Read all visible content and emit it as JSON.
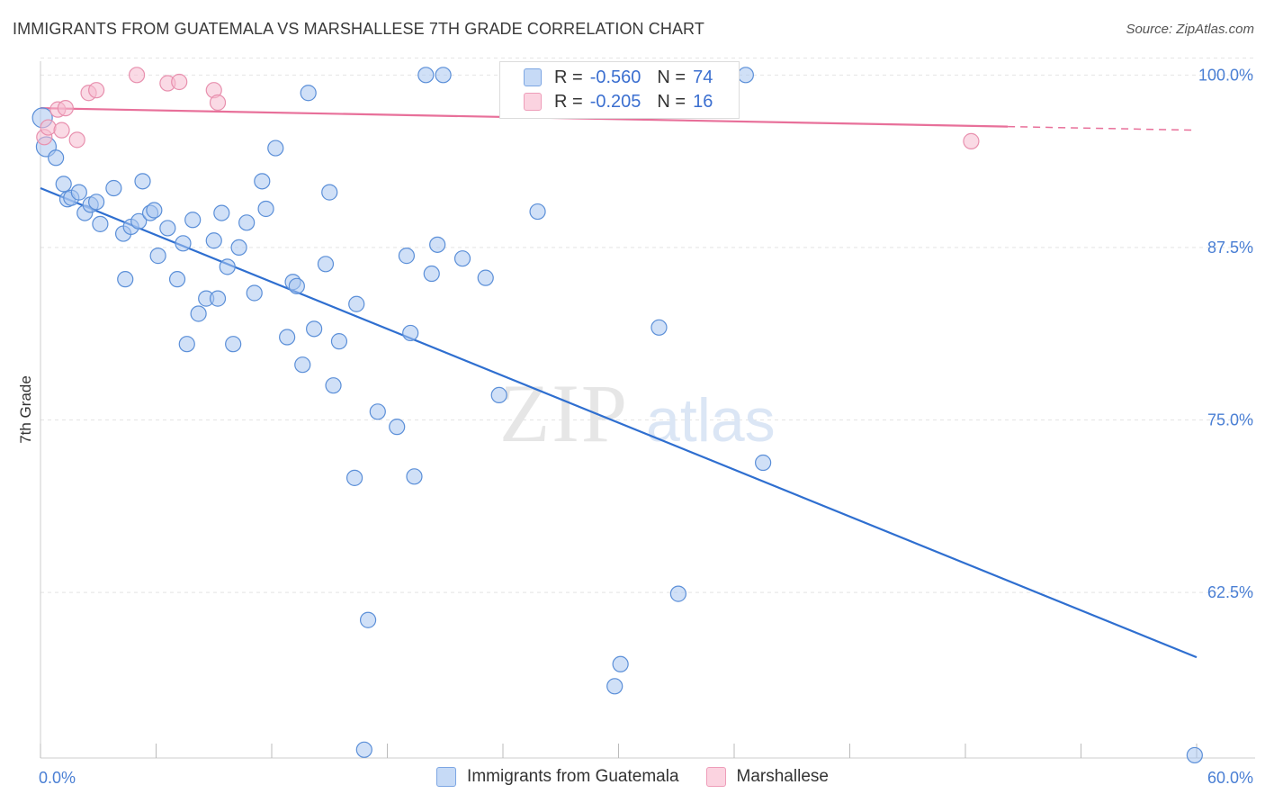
{
  "title": "IMMIGRANTS FROM GUATEMALA VS MARSHALLESE 7TH GRADE CORRELATION CHART",
  "source": "Source: ZipAtlas.com",
  "watermark": {
    "zip": "ZIP",
    "atlas": "atlas"
  },
  "legend_top": [
    {
      "r_label": "R =",
      "r_value": "-0.560",
      "n_label": "N =",
      "n_value": "74",
      "color": "#a9c6f0"
    },
    {
      "r_label": "R =",
      "r_value": "-0.205",
      "n_label": "N =",
      "n_value": "16",
      "color": "#f6bcd0"
    }
  ],
  "legend_bottom": [
    {
      "label": "Immigrants from Guatemala",
      "color": "#a9c6f0"
    },
    {
      "label": "Marshallese",
      "color": "#f6bcd0"
    }
  ],
  "chart_data": {
    "type": "scatter",
    "ylabel": "7th Grade",
    "xlim": [
      0,
      60
    ],
    "ylim": [
      50.5,
      101
    ],
    "x_tick_labels": [
      "0.0%",
      "60.0%"
    ],
    "y_ticks": [
      62.5,
      75.0,
      87.5,
      100.0
    ],
    "y_tick_labels": [
      "62.5%",
      "75.0%",
      "87.5%",
      "100.0%"
    ],
    "grid": true,
    "series": [
      {
        "name": "Immigrants from Guatemala",
        "color": "#a9c6f0",
        "stroke": "#5b8fd8",
        "trend_color": "#2f6fd0",
        "trend": {
          "x0": 0,
          "y0": 91.8,
          "x1": 60,
          "y1": 57.8,
          "dash_from": null
        },
        "points": [
          [
            0.1,
            96.9
          ],
          [
            0.3,
            94.8
          ],
          [
            0.8,
            94.0
          ],
          [
            1.2,
            92.1
          ],
          [
            1.4,
            91.0
          ],
          [
            1.6,
            91.1
          ],
          [
            2.0,
            91.5
          ],
          [
            2.3,
            90.0
          ],
          [
            2.6,
            90.6
          ],
          [
            2.9,
            90.8
          ],
          [
            3.1,
            89.2
          ],
          [
            3.8,
            91.8
          ],
          [
            4.3,
            88.5
          ],
          [
            4.4,
            85.2
          ],
          [
            4.7,
            89.0
          ],
          [
            5.1,
            89.4
          ],
          [
            5.3,
            92.3
          ],
          [
            5.7,
            90.0
          ],
          [
            5.9,
            90.2
          ],
          [
            6.1,
            86.9
          ],
          [
            6.6,
            88.9
          ],
          [
            7.1,
            85.2
          ],
          [
            7.4,
            87.8
          ],
          [
            7.6,
            80.5
          ],
          [
            7.9,
            89.5
          ],
          [
            8.2,
            82.7
          ],
          [
            8.6,
            83.8
          ],
          [
            9.0,
            88.0
          ],
          [
            9.2,
            83.8
          ],
          [
            9.4,
            90.0
          ],
          [
            9.7,
            86.1
          ],
          [
            10.0,
            80.5
          ],
          [
            10.3,
            87.5
          ],
          [
            10.7,
            89.3
          ],
          [
            11.1,
            84.2
          ],
          [
            11.5,
            92.3
          ],
          [
            11.7,
            90.3
          ],
          [
            12.2,
            94.7
          ],
          [
            12.8,
            81.0
          ],
          [
            13.1,
            85.0
          ],
          [
            13.3,
            84.7
          ],
          [
            13.6,
            79.0
          ],
          [
            13.9,
            98.7
          ],
          [
            14.2,
            81.6
          ],
          [
            14.8,
            86.3
          ],
          [
            15.0,
            91.5
          ],
          [
            15.2,
            77.5
          ],
          [
            15.5,
            80.7
          ],
          [
            16.3,
            70.8
          ],
          [
            16.4,
            83.4
          ],
          [
            16.8,
            51.1
          ],
          [
            17.0,
            60.5
          ],
          [
            17.5,
            75.6
          ],
          [
            18.5,
            74.5
          ],
          [
            19.0,
            86.9
          ],
          [
            19.2,
            81.3
          ],
          [
            19.4,
            70.9
          ],
          [
            20.0,
            100.0
          ],
          [
            20.3,
            85.6
          ],
          [
            20.6,
            87.7
          ],
          [
            20.9,
            100.0
          ],
          [
            21.9,
            86.7
          ],
          [
            23.1,
            85.3
          ],
          [
            23.8,
            76.8
          ],
          [
            25.8,
            90.1
          ],
          [
            29.8,
            55.7
          ],
          [
            30.1,
            57.3
          ],
          [
            32.1,
            81.7
          ],
          [
            33.1,
            62.4
          ],
          [
            36.6,
            100.0
          ],
          [
            37.5,
            71.9
          ],
          [
            59.9,
            50.7
          ]
        ]
      },
      {
        "name": "Marshallese",
        "color": "#f6bcd0",
        "stroke": "#e890ae",
        "trend_color": "#e8709a",
        "trend": {
          "x0": 0,
          "y0": 97.6,
          "x1": 60,
          "y1": 96.0,
          "dash_from": 50.2
        },
        "points": [
          [
            0.2,
            95.5
          ],
          [
            0.4,
            96.2
          ],
          [
            0.9,
            97.5
          ],
          [
            1.1,
            96.0
          ],
          [
            1.3,
            97.6
          ],
          [
            1.9,
            95.3
          ],
          [
            2.5,
            98.7
          ],
          [
            2.9,
            98.9
          ],
          [
            5.0,
            100.0
          ],
          [
            6.6,
            99.4
          ],
          [
            7.2,
            99.5
          ],
          [
            9.0,
            98.9
          ],
          [
            9.2,
            98.0
          ],
          [
            48.3,
            95.2
          ]
        ]
      }
    ]
  }
}
